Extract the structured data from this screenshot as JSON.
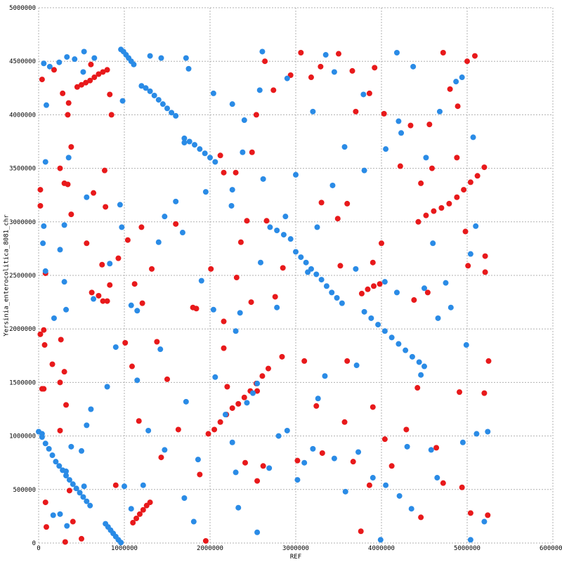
{
  "chart_data": {
    "type": "scatter",
    "x_label": "REF",
    "y_label": "Yersinia_enterocolitica_8081_chr",
    "xlim": [
      0,
      6000000
    ],
    "ylim": [
      0,
      5000000
    ],
    "xticks": [
      0,
      1000000,
      2000000,
      3000000,
      4000000,
      5000000,
      6000000
    ],
    "yticks": [
      0,
      500000,
      1000000,
      1500000,
      2000000,
      2500000,
      3000000,
      3500000,
      4000000,
      4500000,
      5000000
    ],
    "grid": true,
    "series": [
      {
        "color": "#e8191b",
        "x": [
          450000,
          500000,
          550000,
          600000,
          650000,
          700000,
          750000,
          800000,
          1100000,
          1140000,
          1180000,
          1220000,
          1260000,
          1300000,
          2050000,
          2120000,
          2190000,
          2260000,
          2330000,
          2400000,
          2470000,
          2540000,
          2610000,
          2680000,
          4430000,
          4520000,
          4610000,
          4700000,
          4790000,
          4880000,
          4960000,
          5040000,
          5120000,
          5200000,
          3770000,
          3840000,
          3910000,
          3980000,
          40000,
          20000,
          20000,
          80000,
          60000,
          20000,
          40000,
          60000,
          70000,
          80000,
          90000,
          350000,
          180000,
          280000,
          340000,
          380000,
          300000,
          340000,
          250000,
          380000,
          610000,
          640000,
          780000,
          770000,
          830000,
          850000,
          620000,
          700000,
          750000,
          800000,
          830000,
          560000,
          740000,
          930000,
          1040000,
          1200000,
          1090000,
          1010000,
          1210000,
          1120000,
          1500000,
          1600000,
          1320000,
          1840000,
          2010000,
          2310000,
          2360000,
          2430000,
          2660000,
          2120000,
          2160000,
          2300000,
          2490000,
          2540000,
          2640000,
          2740000,
          2940000,
          3060000,
          3180000,
          3290000,
          3500000,
          3660000,
          3700000,
          3860000,
          3920000,
          4030000,
          4340000,
          4560000,
          4800000,
          4890000,
          5090000,
          5000000,
          4720000,
          4460000,
          4220000,
          4880000,
          4980000,
          4590000,
          5210000,
          5210000,
          5010000,
          4540000,
          4380000,
          4000000,
          3900000,
          3520000,
          3300000,
          3600000,
          3490000,
          2850000,
          2760000,
          2480000,
          2160000,
          1800000,
          1380000,
          1170000,
          1430000,
          1630000,
          1980000,
          1880000,
          2200000,
          2160000,
          2550000,
          2840000,
          2550000,
          2620000,
          3020000,
          3310000,
          3240000,
          3570000,
          3670000,
          3760000,
          3860000,
          4040000,
          4120000,
          4290000,
          4460000,
          4640000,
          4720000,
          4940000,
          5040000,
          5240000,
          5250000,
          5200000,
          4910000,
          4420000,
          3900000,
          3600000,
          3100000,
          2410000,
          1950000,
          900000,
          500000,
          360000,
          310000,
          250000,
          300000,
          260000,
          250000,
          320000,
          160000,
          400000
        ],
        "values": [
          4260000,
          4280000,
          4300000,
          4320000,
          4350000,
          4380000,
          4400000,
          4420000,
          190000,
          230000,
          270000,
          310000,
          350000,
          380000,
          1060000,
          1130000,
          1200000,
          1260000,
          1300000,
          1360000,
          1420000,
          1490000,
          1560000,
          1630000,
          3000000,
          3060000,
          3100000,
          3130000,
          3170000,
          3230000,
          3300000,
          3370000,
          3430000,
          3510000,
          2330000,
          2370000,
          2400000,
          2420000,
          4330000,
          3300000,
          3150000,
          2520000,
          1990000,
          1950000,
          1440000,
          1440000,
          1850000,
          380000,
          150000,
          4110000,
          4420000,
          4200000,
          4000000,
          3700000,
          3360000,
          3350000,
          3500000,
          3070000,
          4470000,
          3270000,
          3140000,
          3480000,
          4190000,
          4000000,
          2340000,
          2310000,
          2260000,
          2260000,
          2410000,
          2800000,
          2600000,
          2660000,
          2830000,
          2950000,
          1650000,
          1870000,
          2240000,
          2420000,
          1530000,
          2980000,
          2560000,
          2190000,
          2560000,
          2480000,
          2810000,
          3010000,
          3010000,
          3620000,
          3460000,
          3460000,
          3650000,
          4000000,
          4500000,
          4230000,
          4370000,
          4580000,
          4350000,
          4450000,
          4570000,
          4410000,
          4030000,
          4200000,
          4440000,
          4010000,
          3900000,
          3910000,
          4240000,
          4080000,
          4550000,
          4500000,
          4580000,
          3360000,
          3520000,
          3600000,
          2910000,
          3500000,
          2530000,
          2680000,
          2590000,
          2340000,
          2270000,
          2800000,
          2620000,
          2590000,
          3180000,
          3170000,
          3030000,
          2570000,
          2300000,
          2250000,
          2070000,
          2200000,
          1880000,
          1140000,
          800000,
          1060000,
          1020000,
          640000,
          1460000,
          1820000,
          1420000,
          1740000,
          580000,
          720000,
          770000,
          840000,
          1280000,
          1130000,
          760000,
          110000,
          540000,
          970000,
          720000,
          1060000,
          240000,
          890000,
          560000,
          520000,
          280000,
          260000,
          1700000,
          1400000,
          1410000,
          1450000,
          1270000,
          1700000,
          1700000,
          750000,
          20000,
          540000,
          40000,
          490000,
          10000,
          1500000,
          1600000,
          1900000,
          1050000,
          1290000,
          1670000,
          200000
        ]
      },
      {
        "color": "#2a8be6",
        "x": [
          960000,
          990000,
          1020000,
          1050000,
          1080000,
          1110000,
          1200000,
          1250000,
          1300000,
          1350000,
          1400000,
          1450000,
          1500000,
          1550000,
          1600000,
          1700000,
          1760000,
          1820000,
          1880000,
          1940000,
          2000000,
          2060000,
          0,
          40000,
          80000,
          120000,
          160000,
          200000,
          240000,
          280000,
          320000,
          360000,
          400000,
          440000,
          480000,
          520000,
          560000,
          600000,
          780000,
          810000,
          840000,
          870000,
          900000,
          930000,
          960000,
          2700000,
          2780000,
          2860000,
          2940000,
          3000000,
          3060000,
          3120000,
          3180000,
          3240000,
          3300000,
          3360000,
          3420000,
          3480000,
          3540000,
          3800000,
          3880000,
          3960000,
          4040000,
          4120000,
          4200000,
          4280000,
          4360000,
          4440000,
          4500000,
          60000,
          90000,
          130000,
          240000,
          330000,
          420000,
          530000,
          650000,
          520000,
          980000,
          1300000,
          1430000,
          1720000,
          1750000,
          2040000,
          2260000,
          2400000,
          2580000,
          2900000,
          2610000,
          3450000,
          3790000,
          3350000,
          4180000,
          4370000,
          4680000,
          4940000,
          4870000,
          5070000,
          4050000,
          4230000,
          3570000,
          3430000,
          3800000,
          3000000,
          2620000,
          2260000,
          2250000,
          1950000,
          1600000,
          1470000,
          950000,
          560000,
          80000,
          50000,
          60000,
          300000,
          250000,
          80000,
          350000,
          180000,
          300000,
          320000,
          640000,
          830000,
          970000,
          1080000,
          1150000,
          1400000,
          1680000,
          1900000,
          2040000,
          2300000,
          2590000,
          2350000,
          2780000,
          3140000,
          3250000,
          3700000,
          4040000,
          4180000,
          4600000,
          4750000,
          4810000,
          4990000,
          5100000,
          5040000,
          4460000,
          3710000,
          3340000,
          3260000,
          2900000,
          2500000,
          2430000,
          2060000,
          1720000,
          1420000,
          1150000,
          900000,
          800000,
          610000,
          560000,
          500000,
          380000,
          320000,
          170000,
          250000,
          330000,
          40000,
          1000000,
          1220000,
          1080000,
          1470000,
          1700000,
          1810000,
          2260000,
          2300000,
          2330000,
          2550000,
          2690000,
          2800000,
          3020000,
          3200000,
          3450000,
          3580000,
          3730000,
          3900000,
          4050000,
          4300000,
          4350000,
          4580000,
          4950000,
          5110000,
          5240000,
          5200000,
          5040000,
          3990000,
          4650000,
          4210000,
          3100000,
          2180000,
          1280000,
          530000,
          1860000,
          2550000,
          4660000,
          4500000,
          2880000,
          1700000,
          2380000,
          3200000,
          4200000,
          4520000
        ],
        "values": [
          4610000,
          4590000,
          4560000,
          4530000,
          4500000,
          4470000,
          4270000,
          4250000,
          4220000,
          4180000,
          4140000,
          4100000,
          4060000,
          4020000,
          3990000,
          3780000,
          3750000,
          3720000,
          3680000,
          3640000,
          3600000,
          3560000,
          1040000,
          990000,
          930000,
          880000,
          820000,
          760000,
          720000,
          680000,
          630000,
          590000,
          550000,
          510000,
          470000,
          430000,
          390000,
          350000,
          180000,
          150000,
          120000,
          90000,
          60000,
          30000,
          5000,
          2950000,
          2920000,
          2880000,
          2840000,
          2720000,
          2670000,
          2620000,
          2560000,
          2510000,
          2460000,
          2400000,
          2340000,
          2290000,
          2240000,
          2160000,
          2100000,
          2040000,
          1980000,
          1920000,
          1860000,
          1800000,
          1740000,
          1690000,
          1650000,
          4480000,
          4090000,
          4450000,
          4490000,
          4540000,
          4520000,
          4590000,
          4530000,
          4400000,
          4130000,
          4550000,
          4530000,
          4530000,
          4430000,
          4200000,
          4100000,
          3950000,
          4230000,
          4340000,
          4590000,
          4400000,
          4190000,
          4560000,
          4580000,
          4450000,
          4030000,
          4350000,
          4310000,
          3790000,
          3680000,
          3830000,
          3700000,
          3340000,
          3480000,
          3440000,
          3400000,
          3300000,
          3150000,
          3280000,
          3190000,
          3050000,
          3160000,
          3230000,
          3560000,
          2800000,
          2960000,
          2970000,
          2740000,
          2540000,
          3600000,
          2100000,
          2440000,
          2180000,
          2280000,
          2610000,
          2950000,
          2220000,
          2170000,
          2810000,
          2900000,
          2450000,
          2180000,
          1980000,
          2620000,
          2150000,
          2200000,
          2530000,
          2950000,
          2560000,
          2440000,
          2340000,
          2800000,
          2430000,
          2200000,
          1850000,
          2960000,
          2700000,
          1570000,
          1660000,
          1560000,
          1350000,
          1050000,
          1400000,
          1310000,
          1550000,
          1320000,
          1810000,
          1520000,
          1830000,
          1460000,
          1250000,
          1100000,
          860000,
          900000,
          670000,
          260000,
          270000,
          160000,
          1020000,
          530000,
          540000,
          320000,
          870000,
          420000,
          200000,
          940000,
          660000,
          330000,
          100000,
          700000,
          1000000,
          590000,
          880000,
          790000,
          480000,
          850000,
          610000,
          540000,
          900000,
          320000,
          870000,
          940000,
          1020000,
          1040000,
          200000,
          30000,
          30000,
          610000,
          440000,
          750000,
          1200000,
          1050000,
          530000,
          780000,
          1490000,
          2100000,
          2380000,
          3050000,
          3740000,
          3650000,
          4030000,
          3940000,
          3600000
        ]
      }
    ]
  }
}
